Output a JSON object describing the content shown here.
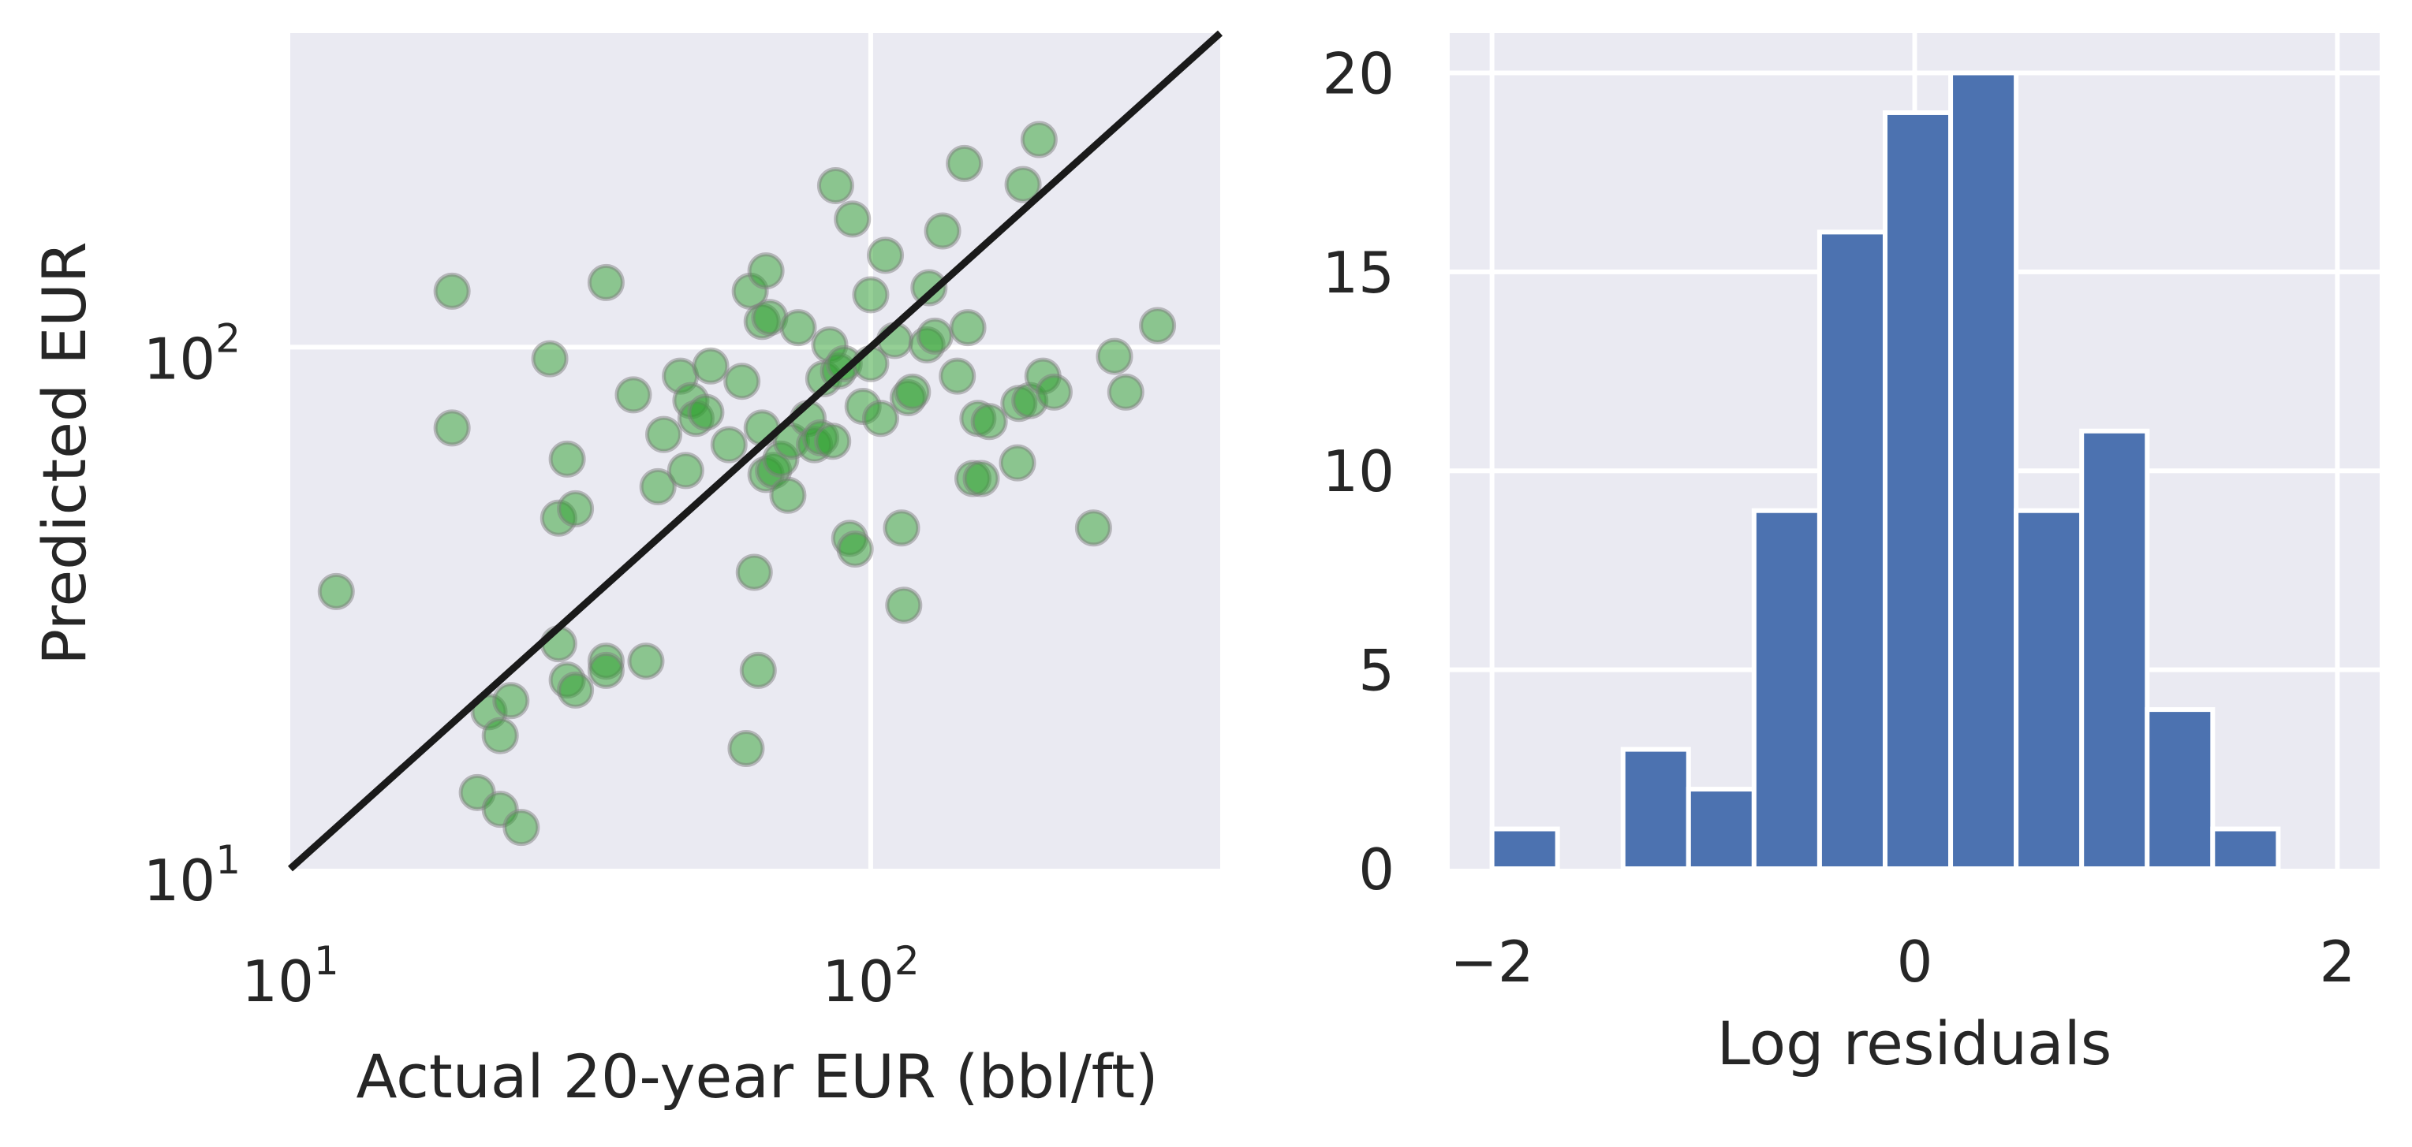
{
  "chart_data": [
    {
      "type": "scatter",
      "xlabel": "Actual 20-year EUR (bbl/ft)",
      "ylabel": "Predicted EUR",
      "xscale": "log",
      "yscale": "log",
      "xlim": [
        10,
        400
      ],
      "ylim": [
        10,
        400
      ],
      "xticks": [
        {
          "value": 10,
          "base": "10",
          "exp": "1"
        },
        {
          "value": 100,
          "base": "10",
          "exp": "2"
        }
      ],
      "yticks": [
        {
          "value": 10,
          "base": "10",
          "exp": "1"
        },
        {
          "value": 100,
          "base": "10",
          "exp": "2"
        }
      ],
      "grid": true,
      "reference_line": {
        "from": [
          10,
          10
        ],
        "to": [
          400,
          400
        ],
        "color": "#1a1a1a"
      },
      "point_color": "#2ca02c",
      "points": [
        [
          12,
          34
        ],
        [
          19,
          128
        ],
        [
          19,
          70
        ],
        [
          21,
          14
        ],
        [
          22,
          20
        ],
        [
          23,
          13
        ],
        [
          23,
          18
        ],
        [
          24,
          21
        ],
        [
          25,
          12
        ],
        [
          28,
          95
        ],
        [
          29,
          27
        ],
        [
          29,
          47
        ],
        [
          30,
          23
        ],
        [
          30,
          61
        ],
        [
          31,
          49
        ],
        [
          31,
          22
        ],
        [
          35,
          133
        ],
        [
          35,
          25
        ],
        [
          35,
          24
        ],
        [
          39,
          81
        ],
        [
          41,
          25
        ],
        [
          43,
          54
        ],
        [
          44,
          68
        ],
        [
          47,
          88
        ],
        [
          48,
          58
        ],
        [
          49,
          79
        ],
        [
          50,
          73
        ],
        [
          52,
          75
        ],
        [
          53,
          92
        ],
        [
          57,
          65
        ],
        [
          60,
          86
        ],
        [
          61,
          17
        ],
        [
          62,
          128
        ],
        [
          63,
          37
        ],
        [
          64,
          24
        ],
        [
          65,
          112
        ],
        [
          65,
          70
        ],
        [
          66,
          140
        ],
        [
          66,
          57
        ],
        [
          67,
          114
        ],
        [
          68,
          58
        ],
        [
          70,
          61
        ],
        [
          72,
          52
        ],
        [
          73,
          66
        ],
        [
          75,
          109
        ],
        [
          78,
          73
        ],
        [
          80,
          65
        ],
        [
          82,
          67
        ],
        [
          83,
          87
        ],
        [
          85,
          101
        ],
        [
          86,
          66
        ],
        [
          87,
          204
        ],
        [
          88,
          90
        ],
        [
          90,
          93
        ],
        [
          92,
          43
        ],
        [
          93,
          176
        ],
        [
          94,
          41
        ],
        [
          97,
          77
        ],
        [
          100,
          126
        ],
        [
          100,
          93
        ],
        [
          104,
          73
        ],
        [
          106,
          150
        ],
        [
          110,
          103
        ],
        [
          113,
          45
        ],
        [
          114,
          32
        ],
        [
          116,
          80
        ],
        [
          118,
          82
        ],
        [
          125,
          101
        ],
        [
          126,
          130
        ],
        [
          129,
          105
        ],
        [
          133,
          167
        ],
        [
          141,
          88
        ],
        [
          145,
          225
        ],
        [
          147,
          109
        ],
        [
          150,
          56
        ],
        [
          153,
          73
        ],
        [
          155,
          56
        ],
        [
          160,
          72
        ],
        [
          179,
          60
        ],
        [
          180,
          78
        ],
        [
          183,
          205
        ],
        [
          188,
          79
        ],
        [
          195,
          250
        ],
        [
          198,
          88
        ],
        [
          207,
          82
        ],
        [
          242,
          45
        ],
        [
          263,
          96
        ],
        [
          275,
          82
        ],
        [
          312,
          110
        ]
      ]
    },
    {
      "type": "bar",
      "subtype": "histogram",
      "xlabel": "Log residuals",
      "ylabel": "",
      "xlim": [
        -2.2,
        2.2
      ],
      "ylim": [
        0,
        21
      ],
      "xticks": [
        {
          "value": -2,
          "label": "−2"
        },
        {
          "value": 0,
          "label": "0"
        },
        {
          "value": 2,
          "label": "2"
        }
      ],
      "yticks": [
        0,
        5,
        10,
        15,
        20
      ],
      "grid": true,
      "bar_color": "#4c72b0",
      "bins": [
        {
          "start": -2.0,
          "end": -1.69,
          "count": 1
        },
        {
          "start": -1.38,
          "end": -1.07,
          "count": 3
        },
        {
          "start": -1.07,
          "end": -0.76,
          "count": 2
        },
        {
          "start": -0.76,
          "end": -0.45,
          "count": 9
        },
        {
          "start": -0.45,
          "end": -0.14,
          "count": 16
        },
        {
          "start": -0.14,
          "end": 0.17,
          "count": 19
        },
        {
          "start": 0.17,
          "end": 0.48,
          "count": 20
        },
        {
          "start": 0.48,
          "end": 0.79,
          "count": 9
        },
        {
          "start": 0.79,
          "end": 1.1,
          "count": 11
        },
        {
          "start": 1.1,
          "end": 1.41,
          "count": 4
        },
        {
          "start": 1.41,
          "end": 1.72,
          "count": 1
        }
      ]
    }
  ]
}
